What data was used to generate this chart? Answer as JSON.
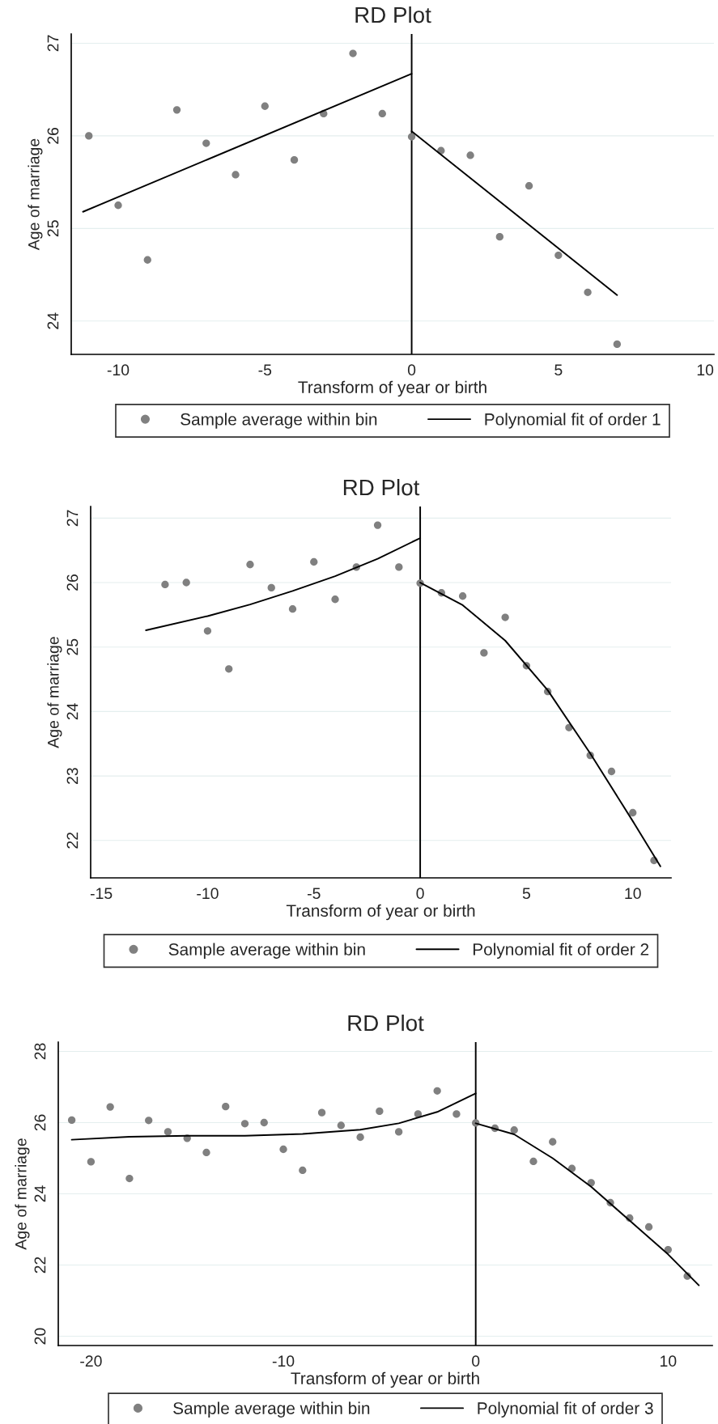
{
  "chart_data": [
    {
      "type": "scatter",
      "title": "RD Plot",
      "xlabel": "Transform of year or birth",
      "ylabel": "Age of marriage",
      "xlim": [
        -11.6,
        10.3
      ],
      "xticks": [
        -10,
        -5,
        0,
        5,
        10
      ],
      "ylim": [
        23.64,
        27.1
      ],
      "yticks": [
        24,
        25,
        26,
        27
      ],
      "grid": "y",
      "legend": "bottom",
      "ref_lines": [
        {
          "axis": "x",
          "value": 0,
          "color": "#000000"
        }
      ],
      "series": [
        {
          "name": "Sample average within bin",
          "color": "#808080",
          "marker": "circle",
          "x": [
            -11,
            -10,
            -9,
            -8,
            -7,
            -6,
            -5,
            -4,
            -3,
            -2,
            -1,
            0,
            1,
            2,
            3,
            4,
            5,
            6,
            7
          ],
          "values": [
            26.0,
            25.25,
            24.66,
            26.28,
            25.92,
            25.58,
            26.32,
            25.74,
            26.24,
            26.89,
            26.24,
            25.99,
            25.84,
            25.79,
            24.91,
            25.46,
            24.71,
            24.31,
            23.75
          ]
        },
        {
          "type": "line",
          "name": "Polynomial fit of order 1",
          "color": "#000000",
          "line_style": "solid",
          "x": [
            -11.2,
            0
          ],
          "values": [
            25.18,
            26.67
          ]
        },
        {
          "type": "line",
          "color": "#000000",
          "line_style": "solid",
          "x": [
            0,
            7
          ],
          "values": [
            26.05,
            24.28
          ]
        }
      ]
    },
    {
      "type": "scatter",
      "title": "RD Plot",
      "xlabel": "Transform of year or birth",
      "ylabel": "Age of marriage",
      "xlim": [
        -15.5,
        11.8
      ],
      "xticks": [
        -15,
        -10,
        -5,
        0,
        5,
        10
      ],
      "ylim": [
        21.42,
        27.18
      ],
      "yticks": [
        22,
        23,
        24,
        25,
        26,
        27
      ],
      "grid": "y",
      "legend": "bottom",
      "ref_lines": [
        {
          "axis": "x",
          "value": 0,
          "color": "#000000"
        }
      ],
      "series": [
        {
          "name": "Sample average within bin",
          "color": "#808080",
          "marker": "circle",
          "x": [
            -12,
            -11,
            -10,
            -9,
            -8,
            -7,
            -6,
            -5,
            -4,
            -3,
            -2,
            -1,
            0,
            1,
            2,
            3,
            4,
            5,
            6,
            7,
            8,
            9,
            10,
            11
          ],
          "values": [
            25.97,
            26.0,
            25.25,
            24.66,
            26.28,
            25.92,
            25.59,
            26.32,
            25.74,
            26.24,
            26.89,
            26.24,
            25.99,
            25.84,
            25.79,
            24.91,
            25.46,
            24.71,
            24.31,
            23.75,
            23.32,
            23.07,
            22.43,
            21.69
          ]
        },
        {
          "type": "line",
          "name": "Polynomial fit of order 2",
          "color": "#000000",
          "line_style": "solid",
          "x": [
            -12.9,
            -10,
            -8,
            -6,
            -4,
            -2,
            0
          ],
          "values": [
            25.26,
            25.48,
            25.66,
            25.87,
            26.1,
            26.37,
            26.69
          ]
        },
        {
          "type": "line",
          "color": "#000000",
          "line_style": "solid",
          "x": [
            0,
            2,
            4,
            6,
            8,
            10,
            11.3
          ],
          "values": [
            26.0,
            25.65,
            25.1,
            24.33,
            23.35,
            22.3,
            21.6
          ]
        }
      ]
    },
    {
      "type": "scatter",
      "title": "RD Plot",
      "xlabel": "Transform of year or birth",
      "ylabel": "Age of marriage",
      "xlim": [
        -21.7,
        12.3
      ],
      "xticks": [
        -20,
        -10,
        0,
        10
      ],
      "ylim": [
        19.74,
        28.26
      ],
      "yticks": [
        20,
        22,
        24,
        26,
        28
      ],
      "grid": "y",
      "legend": "bottom",
      "ref_lines": [
        {
          "axis": "x",
          "value": 0,
          "color": "#000000"
        }
      ],
      "series": [
        {
          "name": "Sample average within bin",
          "color": "#808080",
          "marker": "circle",
          "x": [
            -21,
            -20,
            -19,
            -18,
            -17,
            -16,
            -15,
            -14,
            -13,
            -12,
            -11,
            -10,
            -9,
            -8,
            -7,
            -6,
            -5,
            -4,
            -3,
            -2,
            -1,
            0,
            1,
            2,
            3,
            4,
            5,
            6,
            7,
            8,
            9,
            10,
            11
          ],
          "values": [
            26.07,
            24.9,
            26.44,
            24.43,
            26.06,
            25.74,
            25.56,
            25.16,
            26.45,
            25.97,
            26.0,
            25.25,
            24.66,
            26.28,
            25.92,
            25.59,
            26.32,
            25.74,
            26.24,
            26.89,
            26.24,
            25.99,
            25.84,
            25.79,
            24.91,
            25.46,
            24.71,
            24.31,
            23.75,
            23.32,
            23.07,
            22.43,
            21.69
          ]
        },
        {
          "type": "line",
          "name": "Polynomial fit of order 3",
          "color": "#000000",
          "line_style": "solid",
          "x": [
            -21,
            -18,
            -15,
            -12,
            -9,
            -6,
            -4,
            -2,
            0
          ],
          "values": [
            25.52,
            25.6,
            25.63,
            25.63,
            25.68,
            25.8,
            25.98,
            26.3,
            26.82
          ]
        },
        {
          "type": "line",
          "color": "#000000",
          "line_style": "solid",
          "x": [
            0,
            2,
            4,
            6,
            8,
            10,
            11.6
          ],
          "values": [
            25.98,
            25.67,
            25.0,
            24.2,
            23.25,
            22.3,
            21.43
          ]
        }
      ]
    }
  ]
}
